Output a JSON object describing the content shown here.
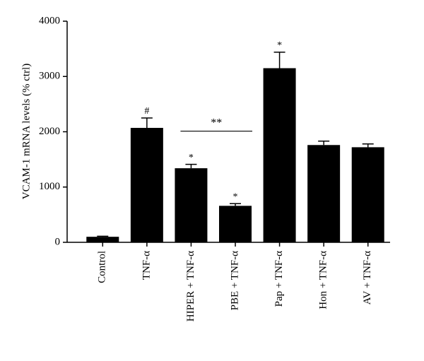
{
  "chart_data": {
    "type": "bar",
    "ylabel": "VCAM-1 mRNA levels (% ctrl)",
    "categories": [
      "Control",
      "TNF-α",
      "HIPER + TNF-α",
      "PBE + TNF-α",
      "Pap + TNF-α",
      "Hon + TNF-α",
      "AV + TNF-α"
    ],
    "values": [
      100,
      2070,
      1340,
      660,
      3150,
      1760,
      1720
    ],
    "errors": [
      10,
      180,
      70,
      40,
      290,
      70,
      60
    ],
    "markers": [
      null,
      "#",
      "*",
      "*",
      "*",
      null,
      null
    ],
    "bracket": {
      "label": "**",
      "from": 2,
      "to": 3
    },
    "color": "#000000",
    "ylim": [
      0,
      4000
    ],
    "yticks": [
      0,
      1000,
      2000,
      3000,
      4000
    ],
    "grid": false
  }
}
